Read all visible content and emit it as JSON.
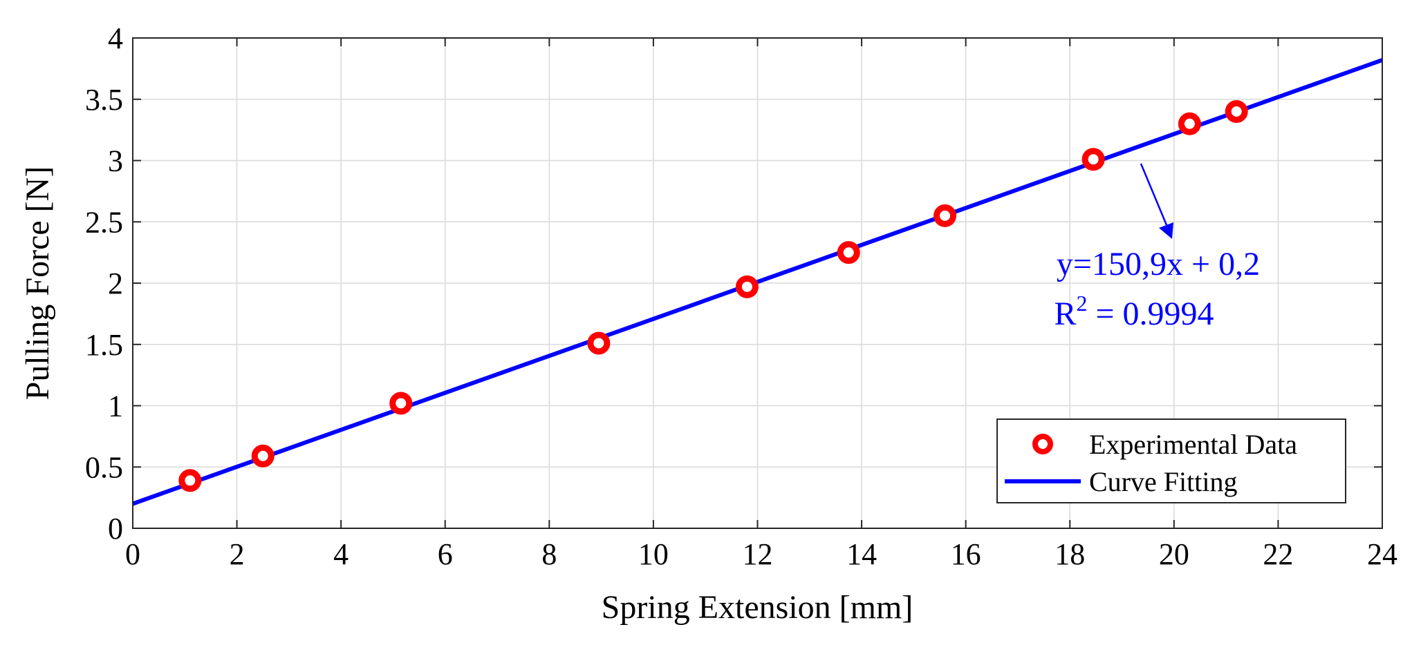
{
  "chart_data": {
    "type": "scatter",
    "xlabel": "Spring Extension [mm]",
    "ylabel": "Pulling Force [N]",
    "xlim": [
      0,
      24
    ],
    "ylim": [
      0,
      4
    ],
    "xticks": [
      0,
      2,
      4,
      6,
      8,
      10,
      12,
      14,
      16,
      18,
      20,
      22,
      24
    ],
    "xtick_labels": [
      "0",
      "2",
      "4",
      "6",
      "8",
      "10",
      "12",
      "14",
      "16",
      "18",
      "20",
      "22",
      "24"
    ],
    "yticks": [
      0,
      0.5,
      1,
      1.5,
      2,
      2.5,
      3,
      3.5,
      4
    ],
    "ytick_labels": [
      "0",
      "0.5",
      "1",
      "1.5",
      "2",
      "2.5",
      "3",
      "3.5",
      "4"
    ],
    "grid": true,
    "legend_position": "bottom-right",
    "series": [
      {
        "name": "Experimental Data",
        "kind": "markers",
        "color": "#ff0000",
        "x": [
          1.1,
          2.5,
          5.15,
          8.95,
          11.8,
          13.75,
          15.6,
          18.45,
          20.3,
          21.2
        ],
        "y": [
          0.39,
          0.59,
          1.02,
          1.51,
          1.97,
          2.25,
          2.55,
          3.01,
          3.3,
          3.4
        ]
      },
      {
        "name": "Curve Fitting",
        "kind": "line",
        "color": "#0000ff",
        "x": [
          0,
          24
        ],
        "y": [
          0.2,
          3.82
        ]
      }
    ],
    "annotation": {
      "line1": "y=150,9x + 0,2",
      "r_label": "R",
      "r_sup": "2",
      "r_value": " = 0.9994",
      "color": "#0000ff"
    }
  }
}
